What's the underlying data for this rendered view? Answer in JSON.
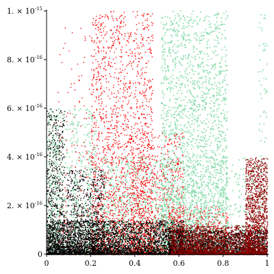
{
  "chart_data": {
    "type": "scatter",
    "title": "",
    "xlabel": "",
    "ylabel": "",
    "xlim": [
      0,
      1
    ],
    "ylim": [
      0,
      1e-15
    ],
    "grid": false,
    "legend": "none",
    "x_ticks": [
      {
        "value": 0,
        "label": "0"
      },
      {
        "value": 0.2,
        "label": "0.2"
      },
      {
        "value": 0.4,
        "label": "0.4"
      },
      {
        "value": 0.6,
        "label": "0.6"
      },
      {
        "value": 0.8,
        "label": "0.8"
      },
      {
        "value": 1,
        "label": "1"
      }
    ],
    "y_ticks": [
      {
        "value": 0,
        "mantissa": "0",
        "exponent": ""
      },
      {
        "value": 2e-16,
        "mantissa": "2. × 10",
        "exponent": "-16"
      },
      {
        "value": 4e-16,
        "mantissa": "4. × 10",
        "exponent": "-16"
      },
      {
        "value": 6e-16,
        "mantissa": "6. × 10",
        "exponent": "-16"
      },
      {
        "value": 8e-16,
        "mantissa": "8. × 10",
        "exponent": "-16"
      },
      {
        "value": 1e-15,
        "mantissa": "1. × 10",
        "exponent": "-15"
      }
    ],
    "series": [
      {
        "color": "#7fd9a5",
        "marker": "cross",
        "clusters": [
          {
            "x_range": [
              0.0,
              0.28
            ],
            "y_peak": 6e-16,
            "peaks_x": [
              0.02,
              0.06,
              0.13,
              0.2
            ],
            "count": 900
          },
          {
            "x_range": [
              0.25,
              0.58
            ],
            "y_peak": 4e-16,
            "count": 1200
          },
          {
            "x_range": [
              0.52,
              0.82
            ],
            "y_peak": 1e-15,
            "count": 2600
          },
          {
            "x_range": [
              0.6,
              0.98
            ],
            "y_peak": 4e-16,
            "count": 600
          },
          {
            "x_range": [
              0.96,
              1.0
            ],
            "y_peak": 1e-15,
            "count": 120
          }
        ]
      },
      {
        "color": "#ff0000",
        "marker": "dot",
        "clusters": [
          {
            "x_range": [
              0.2,
              0.48
            ],
            "y_peak": 1e-15,
            "count": 2200
          },
          {
            "x_range": [
              0.05,
              0.2
            ],
            "y_peak": 9.5e-16,
            "count": 200
          },
          {
            "x_range": [
              0.38,
              0.62
            ],
            "y_peak": 5e-16,
            "count": 900
          },
          {
            "x_range": [
              0.55,
              0.82
            ],
            "y_peak": 2e-16,
            "count": 500
          },
          {
            "x_range": [
              0.9,
              1.0
            ],
            "y_peak": 4e-16,
            "count": 500
          }
        ]
      },
      {
        "color": "#000000",
        "marker": "dot",
        "clusters": [
          {
            "x_range": [
              0.0,
              0.08
            ],
            "y_peak": 6e-16,
            "count": 700
          },
          {
            "x_range": [
              0.09,
              0.26
            ],
            "y_peak": 3.5e-16,
            "count": 900
          },
          {
            "x_range": [
              0.0,
              0.62
            ],
            "y_peak": 1.4e-16,
            "count": 3500
          },
          {
            "x_range": [
              0.55,
              1.0
            ],
            "y_peak": 1e-16,
            "count": 2500
          }
        ]
      },
      {
        "color": "#8b0000",
        "marker": "dot",
        "clusters": [
          {
            "x_range": [
              0.56,
              0.92
            ],
            "y_peak": 1.2e-16,
            "count": 1800
          },
          {
            "x_range": [
              0.9,
              1.0
            ],
            "y_peak": 4e-16,
            "count": 1300
          }
        ]
      }
    ]
  }
}
